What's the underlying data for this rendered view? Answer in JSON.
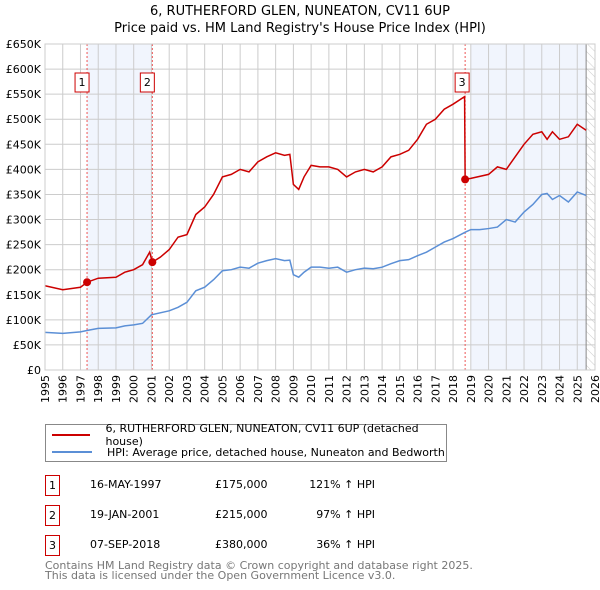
{
  "chart_data": {
    "type": "line",
    "title": "6, RUTHERFORD GLEN, NUNEATON, CV11 6UP",
    "subtitle": "Price paid vs. HM Land Registry's House Price Index (HPI)",
    "xlim": [
      1995,
      2026
    ],
    "ylim": [
      0,
      650000
    ],
    "x_ticks": [
      "1995",
      "1996",
      "1997",
      "1998",
      "1999",
      "2000",
      "2001",
      "2002",
      "2003",
      "2004",
      "2005",
      "2006",
      "2007",
      "2008",
      "2009",
      "2010",
      "2011",
      "2012",
      "2013",
      "2014",
      "2015",
      "2016",
      "2017",
      "2018",
      "2019",
      "2020",
      "2021",
      "2022",
      "2023",
      "2024",
      "2025",
      "2026"
    ],
    "y_ticks": [
      {
        "v": 0,
        "l": "£0"
      },
      {
        "v": 50000,
        "l": "£50K"
      },
      {
        "v": 100000,
        "l": "£100K"
      },
      {
        "v": 150000,
        "l": "£150K"
      },
      {
        "v": 200000,
        "l": "£200K"
      },
      {
        "v": 250000,
        "l": "£250K"
      },
      {
        "v": 300000,
        "l": "£300K"
      },
      {
        "v": 350000,
        "l": "£350K"
      },
      {
        "v": 400000,
        "l": "£400K"
      },
      {
        "v": 450000,
        "l": "£450K"
      },
      {
        "v": 500000,
        "l": "£500K"
      },
      {
        "v": 550000,
        "l": "£550K"
      },
      {
        "v": 600000,
        "l": "£600K"
      },
      {
        "v": 650000,
        "l": "£650K"
      }
    ],
    "grid": true,
    "shaded_ranges": [
      [
        1997.37,
        2001.05
      ],
      [
        2019.0,
        2025.5
      ]
    ],
    "hatched_from": 2025.5,
    "series": [
      {
        "name": "6, RUTHERFORD GLEN, NUNEATON, CV11 6UP (detached house)",
        "color": "#cc0000",
        "x": [
          1995,
          1996,
          1997,
          1997.37,
          1998,
          1999,
          1999.5,
          2000,
          2000.5,
          2000.9,
          2001.05,
          2001.5,
          2002,
          2002.5,
          2003,
          2003.5,
          2004,
          2004.5,
          2005,
          2005.5,
          2006,
          2006.5,
          2007,
          2007.5,
          2008,
          2008.5,
          2008.8,
          2009,
          2009.3,
          2009.6,
          2010,
          2010.5,
          2011,
          2011.5,
          2012,
          2012.5,
          2013,
          2013.5,
          2014,
          2014.5,
          2015,
          2015.5,
          2016,
          2016.5,
          2017,
          2017.5,
          2018,
          2018.65,
          2018.68,
          2019,
          2020,
          2020.5,
          2021,
          2021.5,
          2022,
          2022.5,
          2023,
          2023.3,
          2023.6,
          2024,
          2024.5,
          2025,
          2025.5
        ],
        "y": [
          168000,
          160000,
          165000,
          175000,
          183000,
          185000,
          195000,
          200000,
          210000,
          235000,
          215000,
          225000,
          240000,
          265000,
          270000,
          310000,
          325000,
          350000,
          385000,
          390000,
          400000,
          395000,
          415000,
          425000,
          433000,
          428000,
          430000,
          370000,
          360000,
          385000,
          408000,
          405000,
          405000,
          400000,
          385000,
          395000,
          400000,
          395000,
          405000,
          425000,
          430000,
          438000,
          460000,
          490000,
          500000,
          520000,
          530000,
          545000,
          380000,
          382000,
          390000,
          405000,
          400000,
          425000,
          450000,
          470000,
          475000,
          460000,
          475000,
          460000,
          465000,
          490000,
          478000
        ]
      },
      {
        "name": "HPI: Average price, detached house, Nuneaton and Bedworth",
        "color": "#5b8fd6",
        "x": [
          1995,
          1996,
          1997,
          1997.4,
          1998,
          1999,
          1999.5,
          2000,
          2000.5,
          2001,
          2002,
          2002.5,
          2003,
          2003.5,
          2004,
          2004.5,
          2005,
          2005.5,
          2006,
          2006.5,
          2007,
          2007.5,
          2008,
          2008.5,
          2008.8,
          2009,
          2009.3,
          2009.6,
          2010,
          2010.5,
          2011,
          2011.5,
          2012,
          2012.5,
          2013,
          2013.5,
          2014,
          2014.5,
          2015,
          2015.5,
          2016,
          2016.5,
          2017,
          2017.5,
          2018,
          2018.7,
          2019,
          2019.5,
          2020,
          2020.5,
          2021,
          2021.5,
          2022,
          2022.5,
          2023,
          2023.3,
          2023.6,
          2024,
          2024.5,
          2025,
          2025.5
        ],
        "y": [
          75000,
          73000,
          76000,
          79000,
          83000,
          84000,
          88000,
          90000,
          93000,
          110000,
          118000,
          125000,
          135000,
          158000,
          165000,
          180000,
          198000,
          200000,
          205000,
          203000,
          213000,
          218000,
          222000,
          218000,
          219000,
          190000,
          185000,
          195000,
          205000,
          205000,
          203000,
          205000,
          195000,
          200000,
          203000,
          202000,
          205000,
          212000,
          218000,
          220000,
          228000,
          235000,
          245000,
          255000,
          262000,
          275000,
          280000,
          280000,
          282000,
          285000,
          300000,
          295000,
          315000,
          330000,
          350000,
          352000,
          340000,
          348000,
          335000,
          355000,
          348000
        ]
      }
    ],
    "sales": [
      {
        "label": "1",
        "x": 1997.37,
        "y": 175000,
        "date": "16-MAY-1997",
        "price": "£175,000",
        "hpi": "121% ↑ HPI"
      },
      {
        "label": "2",
        "x": 2001.05,
        "y": 215000,
        "date": "19-JAN-2001",
        "price": "£215,000",
        "hpi": "97% ↑ HPI"
      },
      {
        "label": "3",
        "x": 2018.68,
        "y": 380000,
        "date": "07-SEP-2018",
        "price": "£380,000",
        "hpi": "36% ↑ HPI"
      }
    ]
  },
  "footer": {
    "line1": "Contains HM Land Registry data © Crown copyright and database right 2025.",
    "line2": "This data is licensed under the Open Government Licence v3.0."
  }
}
